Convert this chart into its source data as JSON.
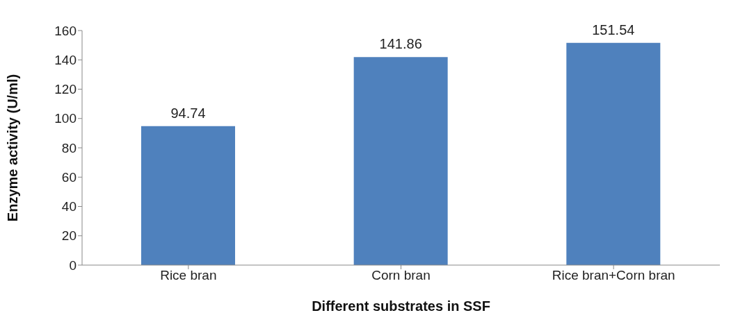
{
  "chart_data": {
    "type": "bar",
    "xlabel": "Different substrates in SSF",
    "ylabel": "Enzyme activity (U/ml)",
    "categories": [
      "Rice bran",
      "Corn bran",
      "Rice bran+Corn bran"
    ],
    "values": [
      94.74,
      141.86,
      151.54
    ],
    "color": "#4f81bd",
    "ylim": [
      0,
      160
    ],
    "yticks": [
      0,
      20,
      40,
      60,
      80,
      100,
      120,
      140,
      160
    ],
    "grid": false,
    "data_labels": true
  }
}
